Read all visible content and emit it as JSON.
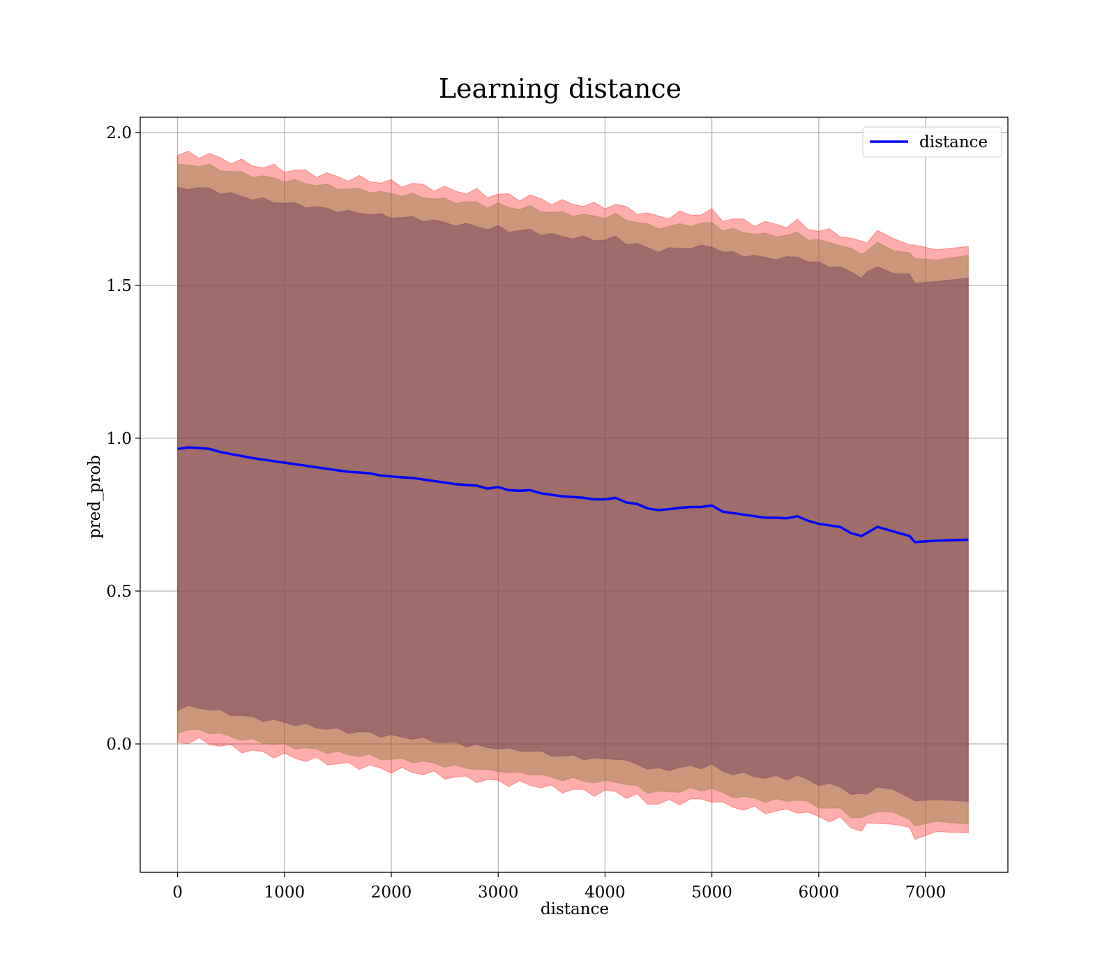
{
  "chart_data": {
    "type": "line",
    "title": "Learning distance",
    "xlabel": "distance",
    "ylabel": "pred_prob",
    "xlim": [
      -350,
      7770
    ],
    "ylim": [
      -0.42,
      2.05
    ],
    "xticks": [
      0,
      1000,
      2000,
      3000,
      4000,
      5000,
      6000,
      7000
    ],
    "yticks": [
      0.0,
      0.5,
      1.0,
      1.5,
      2.0
    ],
    "xtick_labels": [
      "0",
      "1000",
      "2000",
      "3000",
      "4000",
      "5000",
      "6000",
      "7000"
    ],
    "ytick_labels": [
      "0.0",
      "0.5",
      "1.0",
      "1.5",
      "2.0"
    ],
    "grid": true,
    "legend_position": "top-right",
    "colors": {
      "line": "#0000ff",
      "band_outer": "#ff0000",
      "band_middle": "#8b7b3a",
      "band_inner": "#6b3a5a"
    },
    "series": [
      {
        "name": "distance",
        "x": [
          0,
          100,
          200,
          300,
          400,
          500,
          600,
          700,
          800,
          900,
          1000,
          1100,
          1200,
          1300,
          1400,
          1500,
          1600,
          1700,
          1800,
          1900,
          2000,
          2100,
          2200,
          2300,
          2400,
          2500,
          2600,
          2700,
          2800,
          2900,
          3000,
          3100,
          3200,
          3300,
          3400,
          3500,
          3600,
          3700,
          3800,
          3900,
          4000,
          4100,
          4200,
          4300,
          4400,
          4500,
          4600,
          4700,
          4800,
          4900,
          5000,
          5100,
          5200,
          5300,
          5400,
          5500,
          5600,
          5700,
          5800,
          5900,
          6000,
          6100,
          6200,
          6300,
          6400,
          6450,
          6550,
          6700,
          6850,
          6900,
          7100,
          7400
        ],
        "y": [
          0.965,
          0.97,
          0.968,
          0.965,
          0.955,
          0.948,
          0.942,
          0.935,
          0.93,
          0.925,
          0.92,
          0.915,
          0.91,
          0.905,
          0.9,
          0.895,
          0.89,
          0.888,
          0.885,
          0.878,
          0.875,
          0.872,
          0.87,
          0.865,
          0.86,
          0.855,
          0.85,
          0.847,
          0.845,
          0.835,
          0.84,
          0.83,
          0.828,
          0.83,
          0.82,
          0.815,
          0.81,
          0.808,
          0.805,
          0.8,
          0.8,
          0.805,
          0.79,
          0.785,
          0.77,
          0.765,
          0.768,
          0.772,
          0.775,
          0.775,
          0.78,
          0.76,
          0.755,
          0.75,
          0.745,
          0.74,
          0.74,
          0.738,
          0.745,
          0.73,
          0.72,
          0.715,
          0.71,
          0.69,
          0.68,
          0.69,
          0.71,
          0.695,
          0.68,
          0.66,
          0.665,
          0.668
        ]
      }
    ],
    "bands": [
      {
        "color": "#ff0000",
        "half_width": 0.96
      },
      {
        "color": "#8b7b3a",
        "half_width": 0.925
      },
      {
        "color": "#6b3a5a",
        "half_width": 0.85
      }
    ]
  }
}
